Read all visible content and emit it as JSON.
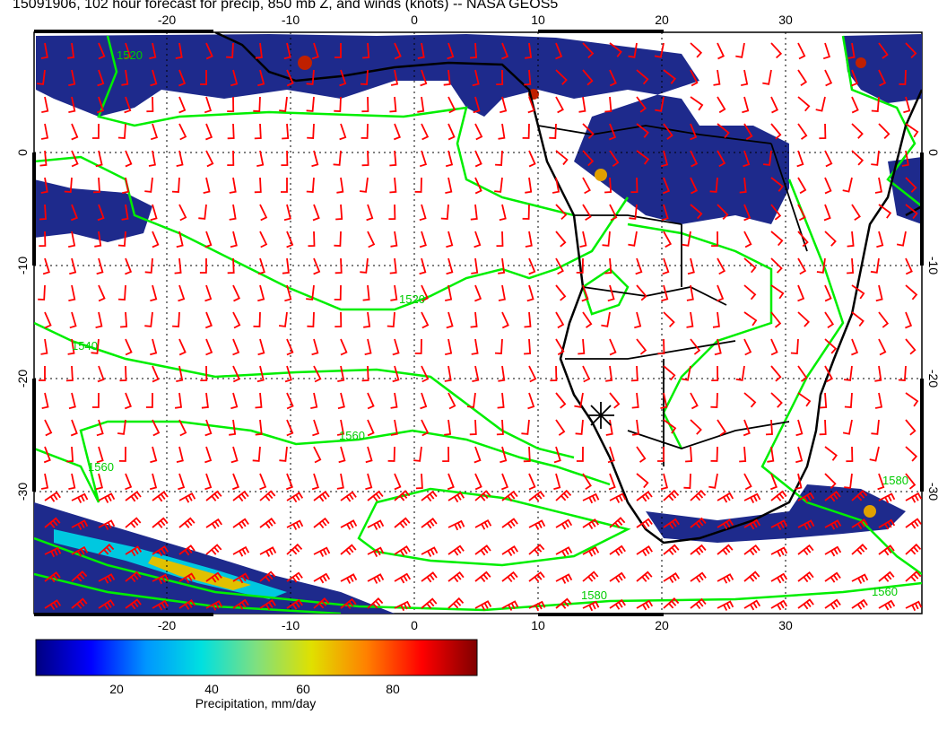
{
  "title": "15091906, 102 hour forecast for precip, 850 mb Z, and winds (knots) -- NASA GEOS5",
  "map": {
    "lon_ticks": [
      "-20",
      "-10",
      "0",
      "10",
      "20",
      "30"
    ],
    "lat_ticks": [
      "0",
      "-10",
      "-20",
      "-30"
    ],
    "contour_labels": [
      "1520",
      "1520",
      "1540",
      "1560",
      "1560",
      "1560",
      "1580",
      "1580"
    ],
    "colors": {
      "wind_barbs": "#ff0000",
      "contours": "#00ee00",
      "coastlines": "#000000",
      "precip_low": "#1a237e",
      "precip_high": "#8b0000"
    }
  },
  "colorbar": {
    "label": "Precipitation, mm/day",
    "ticks": [
      "20",
      "40",
      "60",
      "80"
    ],
    "stops": [
      "#000080",
      "#0000ff",
      "#0096ff",
      "#00e0e0",
      "#7fe07f",
      "#e0e000",
      "#ff8000",
      "#ff0000",
      "#800000"
    ]
  }
}
